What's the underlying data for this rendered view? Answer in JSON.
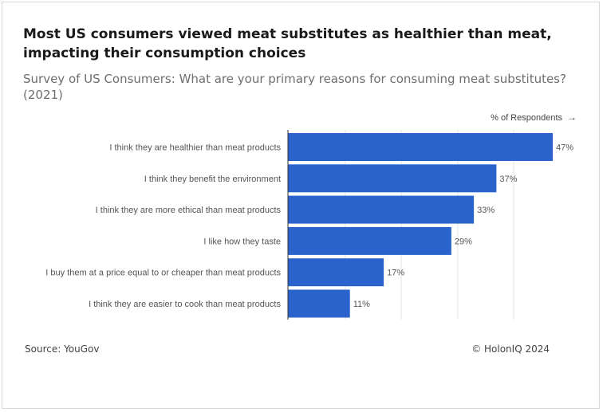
{
  "header": {
    "title": "Most US consumers viewed meat substitutes as healthier than meat, impacting their consumption choices",
    "subtitle": "Survey of US Consumers: What are your primary reasons for consuming meat substitutes? (2021)"
  },
  "unit_label": "% of Respondents",
  "unit_arrow": "→",
  "footer": {
    "source": "Source: YouGov",
    "copyright": "© HolonIQ 2024"
  },
  "colors": {
    "bar": "#2a63cc",
    "grid": "#e3e3e3",
    "axis": "#333333",
    "label": "#555555"
  },
  "chart_data": {
    "type": "bar",
    "orientation": "horizontal",
    "title": "Survey of US Consumers: What are your primary reasons for consuming meat substitutes? (2021)",
    "xlabel": "% of Respondents",
    "ylabel": "",
    "xlim": [
      0,
      47
    ],
    "grid": true,
    "categories": [
      "I think they are healthier than meat products",
      "I think they benefit the environment",
      "I think they are more ethical than meat products",
      "I like how they taste",
      "I buy them at a price equal to or cheaper than meat products",
      "I think they are easier to cook than meat products"
    ],
    "values": [
      47,
      37,
      33,
      29,
      17,
      11
    ],
    "data_labels": [
      "47%",
      "37%",
      "33%",
      "29%",
      "17%",
      "11%"
    ]
  }
}
